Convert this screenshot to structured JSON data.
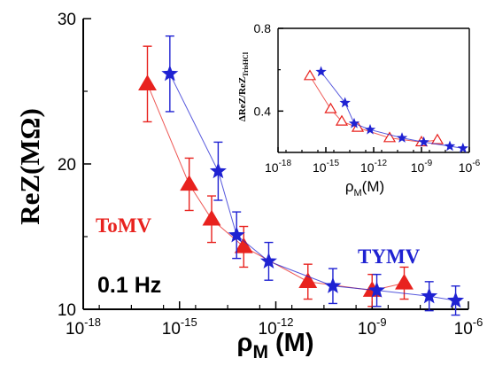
{
  "chart_data": [
    {
      "type": "scatter",
      "xscale": "log",
      "xlim": [
        1e-18,
        1e-06
      ],
      "ylim": [
        10,
        30
      ],
      "x_ticks": [
        {
          "value": 1e-18,
          "label_base": "10",
          "label_exp": "-18"
        },
        {
          "value": 1e-15,
          "label_base": "10",
          "label_exp": "-15"
        },
        {
          "value": 1e-12,
          "label_base": "10",
          "label_exp": "-12"
        },
        {
          "value": 1e-09,
          "label_base": "10",
          "label_exp": "-9"
        },
        {
          "value": 1e-06,
          "label_base": "10",
          "label_exp": "-6"
        }
      ],
      "y_ticks": [
        {
          "value": 10,
          "label": "10"
        },
        {
          "value": 20,
          "label": "20"
        },
        {
          "value": 30,
          "label": "30"
        }
      ],
      "xlabel": {
        "main": "ρ",
        "sub": "M",
        "rest": " (M)"
      },
      "ylabel": "ReZ(MΩ)",
      "annotations": {
        "frequency": "0.1 Hz"
      },
      "grid": false,
      "series": [
        {
          "name": "ToMV",
          "color": "#e8221e",
          "marker": "triangle",
          "x": [
            1e-16,
            2e-15,
            1e-14,
            1e-13,
            1e-11,
            1e-09,
            1e-08
          ],
          "y": [
            25.5,
            18.6,
            16.2,
            14.3,
            11.9,
            11.3,
            11.8
          ],
          "err": [
            2.6,
            1.8,
            1.6,
            1.4,
            1.2,
            1.1,
            1.1
          ]
        },
        {
          "name": "TYMV",
          "color": "#1f22d2",
          "marker": "star",
          "x": [
            5e-16,
            1.6e-14,
            6e-14,
            6e-13,
            6e-11,
            1.4e-09,
            6e-08,
            4e-07
          ],
          "y": [
            26.2,
            19.5,
            15.1,
            13.3,
            11.6,
            11.3,
            10.9,
            10.6
          ],
          "err": [
            2.6,
            2.0,
            1.6,
            1.3,
            1.2,
            1.1,
            1.0,
            1.0
          ]
        }
      ]
    },
    {
      "type": "scatter",
      "xscale": "log",
      "xlim": [
        1e-18,
        1e-06
      ],
      "ylim": [
        0.2,
        0.8
      ],
      "x_ticks": [
        {
          "value": 1e-18,
          "label_base": "10",
          "label_exp": "-18"
        },
        {
          "value": 1e-15,
          "label_base": "10",
          "label_exp": "-15"
        },
        {
          "value": 1e-12,
          "label_base": "10",
          "label_exp": "-12"
        },
        {
          "value": 1e-09,
          "label_base": "10",
          "label_exp": "-9"
        },
        {
          "value": 1e-06,
          "label_base": "10",
          "label_exp": "-6"
        }
      ],
      "y_ticks": [
        {
          "value": 0.4,
          "label": "0.4"
        },
        {
          "value": 0.8,
          "label": "0.8"
        }
      ],
      "xlabel": {
        "main": "ρ",
        "sub": "M",
        "rest": "(M)"
      },
      "ylabel": {
        "main": "ΔReZ/ReZ",
        "sub": "TrisHCl"
      },
      "grid": false,
      "series": [
        {
          "color": "#e8221e",
          "marker": "open-triangle",
          "x": [
            1e-16,
            2e-15,
            1e-14,
            1e-13,
            1e-11,
            1e-09,
            1e-08
          ],
          "y": [
            0.57,
            0.41,
            0.35,
            0.32,
            0.27,
            0.25,
            0.26
          ]
        },
        {
          "color": "#1f22d2",
          "marker": "star",
          "x": [
            5e-16,
            1.6e-14,
            6e-14,
            6e-13,
            6e-11,
            1.4e-09,
            6e-08,
            4e-07
          ],
          "y": [
            0.59,
            0.44,
            0.34,
            0.31,
            0.27,
            0.25,
            0.23,
            0.22
          ]
        }
      ]
    }
  ]
}
